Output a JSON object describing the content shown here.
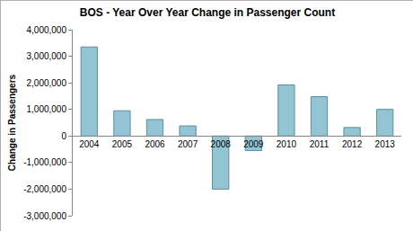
{
  "chart_data": {
    "type": "bar",
    "title": "BOS - Year Over Year Change in Passenger Count",
    "y_label": "Change in Passengers",
    "categories": [
      "2004",
      "2005",
      "2006",
      "2007",
      "2008",
      "2009",
      "2010",
      "2011",
      "2012",
      "2013"
    ],
    "values": [
      3350000,
      950000,
      620000,
      380000,
      -2000000,
      -550000,
      1920000,
      1480000,
      320000,
      1000000
    ],
    "color": "#93c4d4",
    "ylim": [
      -3000000,
      4000000
    ],
    "yticks": [
      {
        "value": -3000000,
        "label": "-3,000,000"
      },
      {
        "value": -2000000,
        "label": "-2,000,000"
      },
      {
        "value": -1000000,
        "label": "-1,000,000"
      },
      0,
      {
        "value": 1000000,
        "label": "1,000,000"
      },
      {
        "value": 2000000,
        "label": "2,000,000"
      },
      {
        "value": 3000000,
        "label": "3,000,000"
      },
      {
        "value": 4000000,
        "label": "4,000,000"
      }
    ],
    "grid": false
  }
}
